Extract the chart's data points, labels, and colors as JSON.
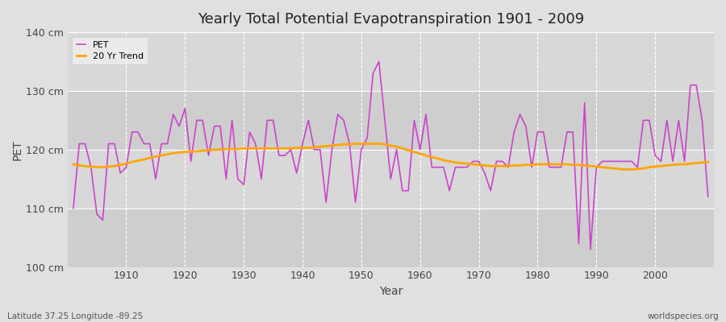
{
  "title": "Yearly Total Potential Evapotranspiration 1901 - 2009",
  "xlabel": "Year",
  "ylabel": "PET",
  "bottom_left_label": "Latitude 37.25 Longitude -89.25",
  "bottom_right_label": "worldspecies.org",
  "pet_color": "#CC44CC",
  "trend_color": "#FFA500",
  "background_color": "#E0E0E0",
  "plot_bg_color": "#D8D8D8",
  "grid_color": "#FFFFFF",
  "ylim": [
    100,
    140
  ],
  "yticks": [
    100,
    110,
    120,
    130,
    140
  ],
  "ytick_labels": [
    "100 cm",
    "110 cm",
    "120 cm",
    "130 cm",
    "140 cm"
  ],
  "years": [
    1901,
    1902,
    1903,
    1904,
    1905,
    1906,
    1907,
    1908,
    1909,
    1910,
    1911,
    1912,
    1913,
    1914,
    1915,
    1916,
    1917,
    1918,
    1919,
    1920,
    1921,
    1922,
    1923,
    1924,
    1925,
    1926,
    1927,
    1928,
    1929,
    1930,
    1931,
    1932,
    1933,
    1934,
    1935,
    1936,
    1937,
    1938,
    1939,
    1940,
    1941,
    1942,
    1943,
    1944,
    1945,
    1946,
    1947,
    1948,
    1949,
    1950,
    1951,
    1952,
    1953,
    1954,
    1955,
    1956,
    1957,
    1958,
    1959,
    1960,
    1961,
    1962,
    1963,
    1964,
    1965,
    1966,
    1967,
    1968,
    1969,
    1970,
    1971,
    1972,
    1973,
    1974,
    1975,
    1976,
    1977,
    1978,
    1979,
    1980,
    1981,
    1982,
    1983,
    1984,
    1985,
    1986,
    1987,
    1988,
    1989,
    1990,
    1991,
    1992,
    1993,
    1994,
    1995,
    1996,
    1997,
    1998,
    1999,
    2000,
    2001,
    2002,
    2003,
    2004,
    2005,
    2006,
    2007,
    2008,
    2009
  ],
  "pet_values": [
    110,
    121,
    121,
    117,
    109,
    108,
    121,
    121,
    116,
    117,
    123,
    123,
    121,
    121,
    115,
    121,
    121,
    126,
    124,
    127,
    118,
    125,
    125,
    119,
    124,
    124,
    115,
    125,
    115,
    114,
    123,
    121,
    115,
    125,
    125,
    119,
    119,
    120,
    116,
    121,
    125,
    120,
    120,
    111,
    120,
    126,
    125,
    121,
    111,
    120,
    122,
    133,
    135,
    125,
    115,
    120,
    113,
    113,
    125,
    120,
    126,
    117,
    117,
    117,
    113,
    117,
    117,
    117,
    118,
    118,
    116,
    113,
    118,
    118,
    117,
    123,
    126,
    124,
    117,
    123,
    123,
    117,
    117,
    117,
    123,
    123,
    104,
    128,
    103,
    117,
    118,
    118,
    118,
    118,
    118,
    118,
    117,
    125,
    125,
    119,
    118,
    125,
    118,
    125,
    118,
    131,
    131,
    125,
    112
  ],
  "trend_values": [
    117.5,
    117.3,
    117.2,
    117.1,
    117.0,
    117.0,
    117.1,
    117.2,
    117.4,
    117.6,
    117.9,
    118.1,
    118.3,
    118.6,
    118.8,
    119.0,
    119.2,
    119.4,
    119.5,
    119.6,
    119.7,
    119.7,
    119.8,
    119.9,
    120.0,
    120.0,
    120.1,
    120.1,
    120.1,
    120.2,
    120.2,
    120.2,
    120.2,
    120.2,
    120.2,
    120.2,
    120.2,
    120.2,
    120.3,
    120.3,
    120.3,
    120.4,
    120.5,
    120.6,
    120.7,
    120.8,
    120.9,
    120.9,
    121.0,
    121.0,
    121.0,
    121.0,
    121.0,
    120.9,
    120.7,
    120.5,
    120.2,
    119.9,
    119.6,
    119.3,
    119.0,
    118.7,
    118.5,
    118.2,
    118.0,
    117.8,
    117.7,
    117.6,
    117.5,
    117.4,
    117.3,
    117.2,
    117.2,
    117.2,
    117.2,
    117.3,
    117.3,
    117.4,
    117.4,
    117.5,
    117.5,
    117.5,
    117.5,
    117.5,
    117.5,
    117.4,
    117.4,
    117.3,
    117.2,
    117.1,
    117.0,
    116.9,
    116.8,
    116.7,
    116.6,
    116.6,
    116.7,
    116.8,
    117.0,
    117.1,
    117.2,
    117.3,
    117.4,
    117.5,
    117.5,
    117.6,
    117.7,
    117.8,
    117.9
  ]
}
